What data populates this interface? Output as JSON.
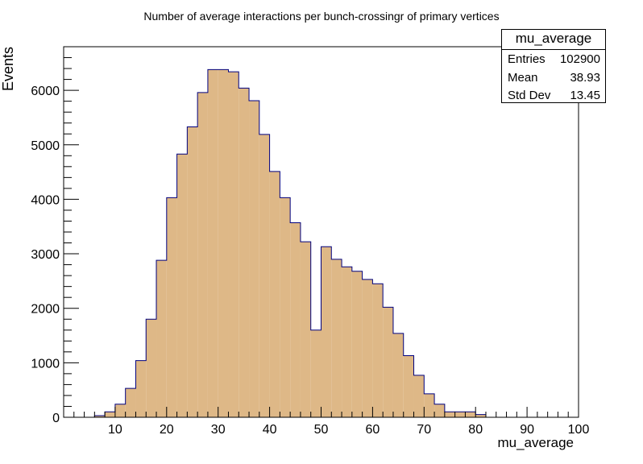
{
  "chart_data": {
    "type": "bar",
    "title": "Number of average interactions per bunch-crossingr of primary vertices",
    "xlabel": "mu_average",
    "ylabel": "Events",
    "xlim": [
      0,
      100
    ],
    "ylim": [
      0,
      6800
    ],
    "x_ticks": [
      10,
      20,
      30,
      40,
      50,
      60,
      70,
      80,
      90,
      100
    ],
    "y_ticks": [
      0,
      1000,
      2000,
      3000,
      4000,
      5000,
      6000
    ],
    "bin_edges": [
      6,
      8,
      10,
      12,
      14,
      16,
      18,
      20,
      22,
      24,
      26,
      28,
      30,
      32,
      34,
      36,
      38,
      40,
      42,
      44,
      46,
      48,
      50,
      52,
      54,
      56,
      58,
      60,
      62,
      64,
      66,
      68,
      70,
      72,
      74,
      76,
      78,
      80,
      82
    ],
    "values": [
      30,
      100,
      240,
      530,
      1040,
      1800,
      2880,
      4030,
      4830,
      5330,
      5960,
      6380,
      6380,
      6340,
      6040,
      5810,
      5190,
      4510,
      4030,
      3570,
      3220,
      1600,
      3130,
      2900,
      2760,
      2680,
      2530,
      2450,
      2020,
      1540,
      1130,
      770,
      430,
      240,
      100,
      100,
      100,
      50
    ],
    "fill_color": "#deb887",
    "line_color": "#00007f",
    "grid": false,
    "legend": "none"
  },
  "stats": {
    "name": "mu_average",
    "rows": [
      {
        "label": "Entries",
        "value": "102900"
      },
      {
        "label": "Mean",
        "value": "38.93"
      },
      {
        "label": "Std Dev",
        "value": "13.45"
      }
    ]
  }
}
